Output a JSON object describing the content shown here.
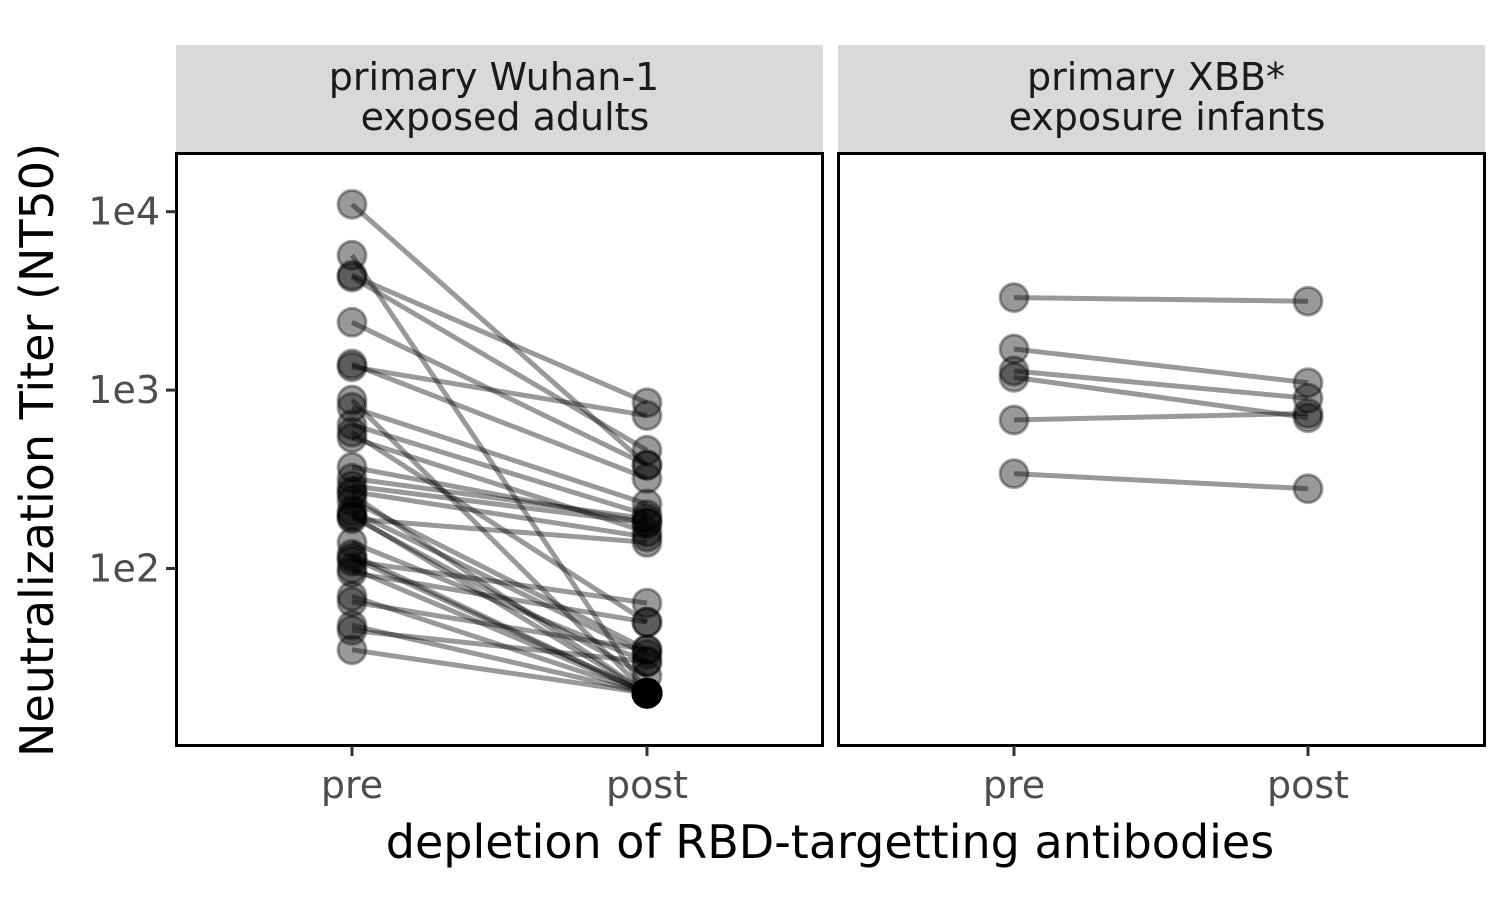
{
  "chart_data": {
    "type": "line",
    "ylabel": "Neutralization Titer (NT50)",
    "xlabel": "depletion of RBD-targetting antibodies",
    "y_scale": "log10",
    "ylim": [
      12,
      21000
    ],
    "yticks": [
      {
        "value": 100,
        "label": "1e2"
      },
      {
        "value": 1000,
        "label": "1e3"
      },
      {
        "value": 10000,
        "label": "1e4"
      }
    ],
    "categories": [
      "pre",
      "post"
    ],
    "grid": false,
    "point_color": "#000000",
    "point_opacity": 0.4,
    "line_color": "#000000",
    "line_opacity": 0.4,
    "strip_color": "#d9d9d9",
    "panels": [
      {
        "strip_lines": [
          "primary Wuhan-1",
          "exposed adults"
        ],
        "pairs": [
          {
            "pre": 11000,
            "post": 380
          },
          {
            "pre": 5700,
            "post": 20
          },
          {
            "pre": 4400,
            "post": 850
          },
          {
            "pre": 4300,
            "post": 460
          },
          {
            "pre": 2400,
            "post": 380
          },
          {
            "pre": 1400,
            "post": 320
          },
          {
            "pre": 1350,
            "post": 720
          },
          {
            "pre": 880,
            "post": 20
          },
          {
            "pre": 800,
            "post": 230
          },
          {
            "pre": 640,
            "post": 200
          },
          {
            "pre": 580,
            "post": 50
          },
          {
            "pre": 540,
            "post": 160
          },
          {
            "pre": 370,
            "post": 180
          },
          {
            "pre": 320,
            "post": 190
          },
          {
            "pre": 290,
            "post": 180
          },
          {
            "pre": 270,
            "post": 150
          },
          {
            "pre": 260,
            "post": 20
          },
          {
            "pre": 240,
            "post": 35
          },
          {
            "pre": 210,
            "post": 33
          },
          {
            "pre": 200,
            "post": 20
          },
          {
            "pre": 195,
            "post": 25
          },
          {
            "pre": 190,
            "post": 140
          },
          {
            "pre": 140,
            "post": 30
          },
          {
            "pre": 120,
            "post": 20
          },
          {
            "pre": 115,
            "post": 20
          },
          {
            "pre": 110,
            "post": 64
          },
          {
            "pre": 100,
            "post": 20
          },
          {
            "pre": 95,
            "post": 50
          },
          {
            "pre": 70,
            "post": 20
          },
          {
            "pre": 65,
            "post": 35
          },
          {
            "pre": 48,
            "post": 20
          },
          {
            "pre": 45,
            "post": 30
          },
          {
            "pre": 35,
            "post": 20
          }
        ]
      },
      {
        "strip_lines": [
          "primary XBB*",
          "exposure infants"
        ],
        "pairs": [
          {
            "pre": 3300,
            "post": 3150
          },
          {
            "pre": 1700,
            "post": 1100
          },
          {
            "pre": 1280,
            "post": 900
          },
          {
            "pre": 1180,
            "post": 700
          },
          {
            "pre": 680,
            "post": 740
          },
          {
            "pre": 340,
            "post": 280
          }
        ]
      }
    ]
  }
}
